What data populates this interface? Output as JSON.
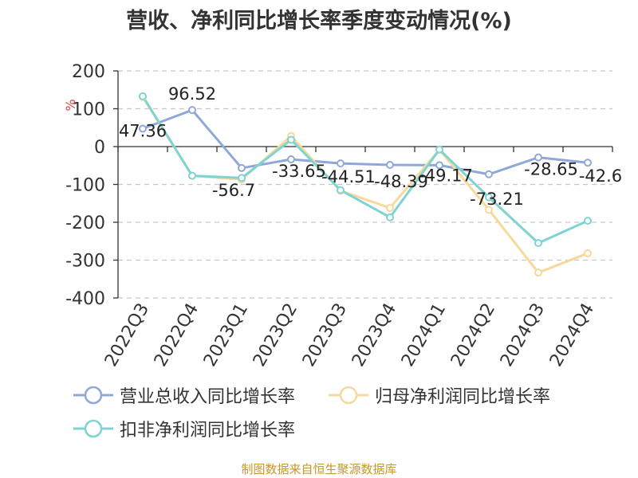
{
  "title": "营收、净利同比增长率季度变动情况(%)",
  "source": "制图数据来自恒生聚源数据库",
  "chart_data": {
    "type": "line",
    "title": "营收、净利同比增长率季度变动情况(%)",
    "ylabel": "%",
    "ylim": [
      -400,
      200
    ],
    "yticks": [
      200,
      100,
      0,
      -100,
      -200,
      -300,
      -400
    ],
    "grid": true,
    "legend_position": "bottom",
    "categories": [
      "2022Q3",
      "2022Q4",
      "2023Q1",
      "2023Q2",
      "2023Q3",
      "2023Q4",
      "2024Q1",
      "2024Q2",
      "2024Q3",
      "2024Q4"
    ],
    "series": [
      {
        "name": "营业总收入同比增长率",
        "color": "#8fa8d8",
        "values": [
          47.36,
          96.52,
          -56.7,
          -33.65,
          -44.51,
          -48.39,
          -49.17,
          -73.21,
          -28.65,
          -42.6
        ],
        "labels": [
          "47.36",
          "96.52",
          "-56.7",
          "-33.65",
          "-44.51",
          "-48.39",
          "-49.17",
          "-73.21",
          "-28.65",
          "-42.6"
        ]
      },
      {
        "name": "归母净利润同比增长率",
        "color": "#f6d99c",
        "values": [
          131,
          -77,
          -87,
          28,
          -117,
          -162,
          -8,
          -167,
          -333,
          -282
        ]
      },
      {
        "name": "扣非净利润同比增长率",
        "color": "#7fd3d0",
        "values": [
          133,
          -77,
          -83,
          18,
          -115,
          -187,
          -8,
          -134,
          -255,
          -196
        ]
      }
    ]
  }
}
